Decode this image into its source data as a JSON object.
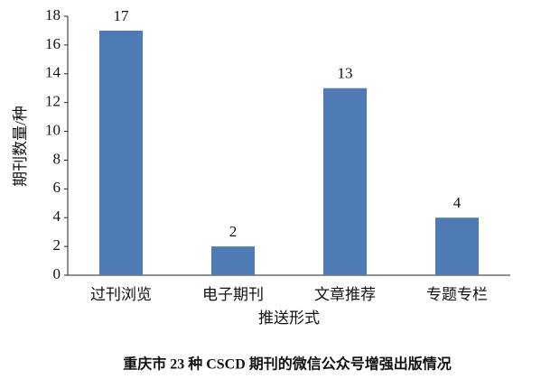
{
  "chart_data": {
    "type": "bar",
    "caption": "重庆市 23 种 CSCD 期刊的微信公众号增强出版情况",
    "x_label": "推送形式",
    "y_label": "期刊数量/种",
    "categories": [
      "过刊浏览",
      "电子期刊",
      "文章推荐",
      "专题专栏"
    ],
    "values": [
      17,
      2,
      13,
      4
    ],
    "color": "#4f7bb5",
    "ylim": [
      0,
      18
    ],
    "yticks": [
      0,
      2,
      4,
      6,
      8,
      10,
      12,
      14,
      16,
      18
    ],
    "grid": false
  }
}
